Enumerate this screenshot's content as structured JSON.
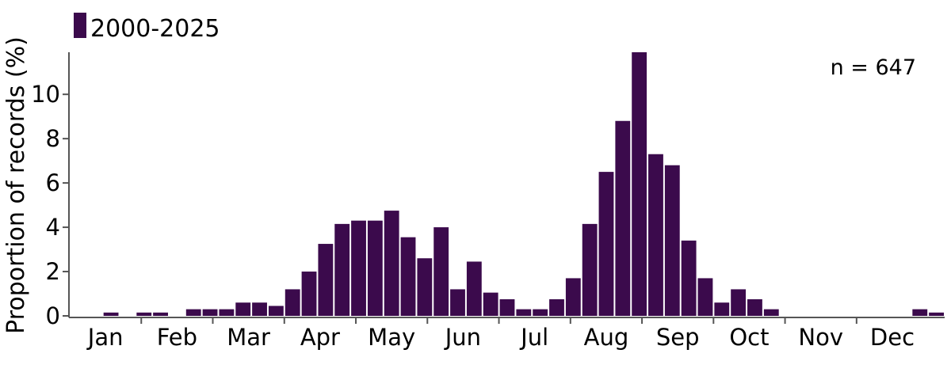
{
  "chart_data": {
    "type": "bar",
    "legend": {
      "label": "2000-2025",
      "placement": "top-left"
    },
    "annotation": "n = 647",
    "ylabel": "Proportion of records (%)",
    "xlabel": "",
    "ylim": [
      0,
      11.9
    ],
    "yticks": [
      0,
      2,
      4,
      6,
      8,
      10
    ],
    "grid": false,
    "color": "#3b0a4c",
    "months": [
      "Jan",
      "Feb",
      "Mar",
      "Apr",
      "May",
      "Jun",
      "Jul",
      "Aug",
      "Sep",
      "Oct",
      "Nov",
      "Dec"
    ],
    "bars_per_month": 4.333,
    "series": [
      {
        "values": [
          0,
          0,
          0.15,
          0,
          0.15,
          0.15,
          0,
          0.3,
          0.3,
          0.3,
          0.6,
          0.6,
          0.45,
          1.2,
          2.0,
          3.25,
          4.15,
          4.3,
          4.3,
          4.75,
          3.55,
          2.6,
          4.0,
          1.2,
          2.45,
          1.05,
          0.75,
          0.3,
          0.3,
          0.75,
          1.7,
          4.15,
          6.5,
          8.8,
          11.9,
          7.3,
          6.8,
          3.4,
          1.7,
          0.6,
          1.2,
          0.75,
          0.3,
          0,
          0,
          0,
          0,
          0,
          0,
          0,
          0,
          0.3,
          0.15
        ]
      }
    ]
  }
}
